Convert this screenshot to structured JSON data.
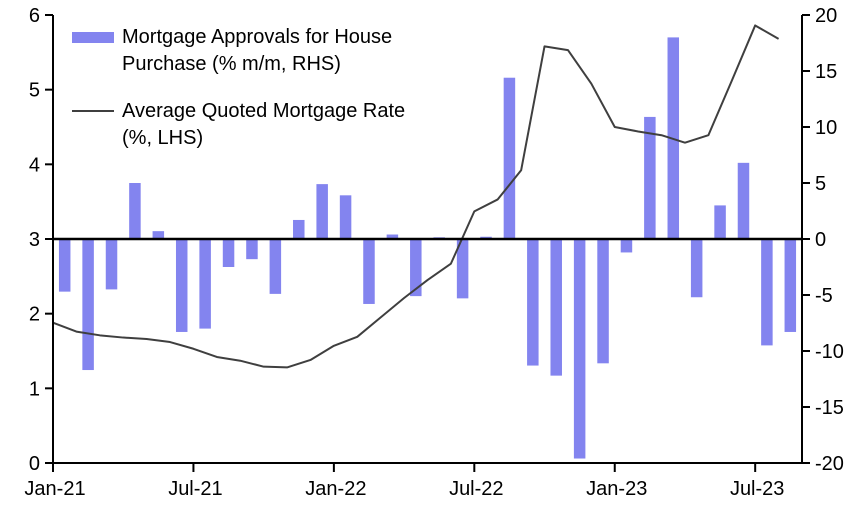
{
  "chart_data": {
    "type": "bar",
    "subtype": "combo-bar-line-dual-axis",
    "months": [
      "Jan-21",
      "Feb-21",
      "Mar-21",
      "Apr-21",
      "May-21",
      "Jun-21",
      "Jul-21",
      "Aug-21",
      "Sep-21",
      "Oct-21",
      "Nov-21",
      "Dec-21",
      "Jan-22",
      "Feb-22",
      "Mar-22",
      "Apr-22",
      "May-22",
      "Jun-22",
      "Jul-22",
      "Aug-22",
      "Sep-22",
      "Oct-22",
      "Nov-22",
      "Dec-22",
      "Jan-23",
      "Feb-23",
      "Mar-23",
      "Apr-23",
      "May-23",
      "Jun-23",
      "Jul-23",
      "Aug-23"
    ],
    "series": [
      {
        "name": "Mortgage Approvals for House Purchase (% m/m, RHS)",
        "type": "bar",
        "axis": "right",
        "color": "#8384EF",
        "values": [
          -4.7,
          -11.7,
          -4.5,
          5.0,
          0.7,
          -8.3,
          -8.0,
          -2.5,
          -1.8,
          -4.9,
          1.7,
          4.9,
          3.9,
          -5.8,
          0.4,
          -5.1,
          0.15,
          -5.3,
          0.2,
          14.4,
          -11.3,
          -12.2,
          -19.6,
          -11.1,
          -1.2,
          10.9,
          18.0,
          -5.2,
          3.0,
          6.8,
          -9.5,
          -8.3
        ]
      },
      {
        "name": "Average Quoted Mortgage Rate (%, LHS)",
        "type": "line",
        "axis": "left",
        "color": "#3F3F3F",
        "values": [
          1.88,
          1.76,
          1.71,
          1.68,
          1.66,
          1.62,
          1.53,
          1.42,
          1.37,
          1.29,
          1.28,
          1.38,
          1.57,
          1.69,
          1.95,
          2.21,
          2.45,
          2.67,
          3.37,
          3.53,
          3.92,
          5.58,
          5.53,
          5.08,
          4.5,
          4.44,
          4.39,
          4.29,
          4.39,
          5.12,
          5.86,
          5.68
        ]
      }
    ],
    "left_axis": {
      "label": "(%, LHS)",
      "min": 0,
      "max": 6,
      "ticks": [
        0,
        1,
        2,
        3,
        4,
        5,
        6
      ]
    },
    "right_axis": {
      "label": "(% m/m, RHS)",
      "min": -20,
      "max": 20,
      "ticks": [
        20,
        15,
        10,
        5,
        0,
        -5,
        -10,
        -15,
        -20
      ]
    },
    "x_ticks": [
      "Jan-21",
      "Jul-21",
      "Jan-22",
      "Jul-22",
      "Jan-23",
      "Jul-23"
    ],
    "grid": false,
    "zero_line": true,
    "legend_position": "top-left"
  },
  "legend": {
    "items": [
      {
        "swatch": "bar-swatch",
        "label_line1": "Mortgage Approvals for House",
        "label_line2": "Purchase (% m/m, RHS)",
        "color": "#8384EF"
      },
      {
        "swatch": "line-swatch",
        "label_line1": "Average Quoted Mortgage Rate",
        "label_line2": "(%, LHS)",
        "color": "#3F3F3F"
      }
    ]
  },
  "colors": {
    "bar": "#8384EF",
    "line": "#3F3F3F",
    "axis": "#000000",
    "text": "#000000",
    "background": "#FFFFFF"
  }
}
